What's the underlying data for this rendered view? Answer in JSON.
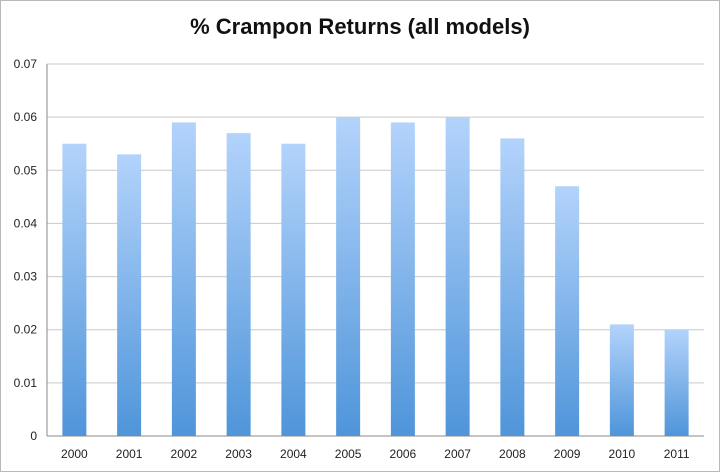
{
  "chart_data": {
    "type": "bar",
    "title": "% Crampon Returns (all models)",
    "xlabel": "",
    "ylabel": "",
    "categories": [
      "2000",
      "2001",
      "2002",
      "2003",
      "2004",
      "2005",
      "2006",
      "2007",
      "2008",
      "2009",
      "2010",
      "2011"
    ],
    "values": [
      0.055,
      0.053,
      0.059,
      0.057,
      0.055,
      0.06,
      0.059,
      0.06,
      0.056,
      0.047,
      0.021,
      0.02
    ],
    "ylim": [
      0,
      0.07
    ],
    "yticks": [
      "0",
      "0.01",
      "0.02",
      "0.03",
      "0.04",
      "0.05",
      "0.06",
      "0.07"
    ],
    "grid": true,
    "legend": "none",
    "colors": {
      "bar_top": "#b3d3fb",
      "bar_bottom": "#4f95da",
      "grid": "#c9c9c9",
      "axis": "#8a8a8a"
    }
  }
}
